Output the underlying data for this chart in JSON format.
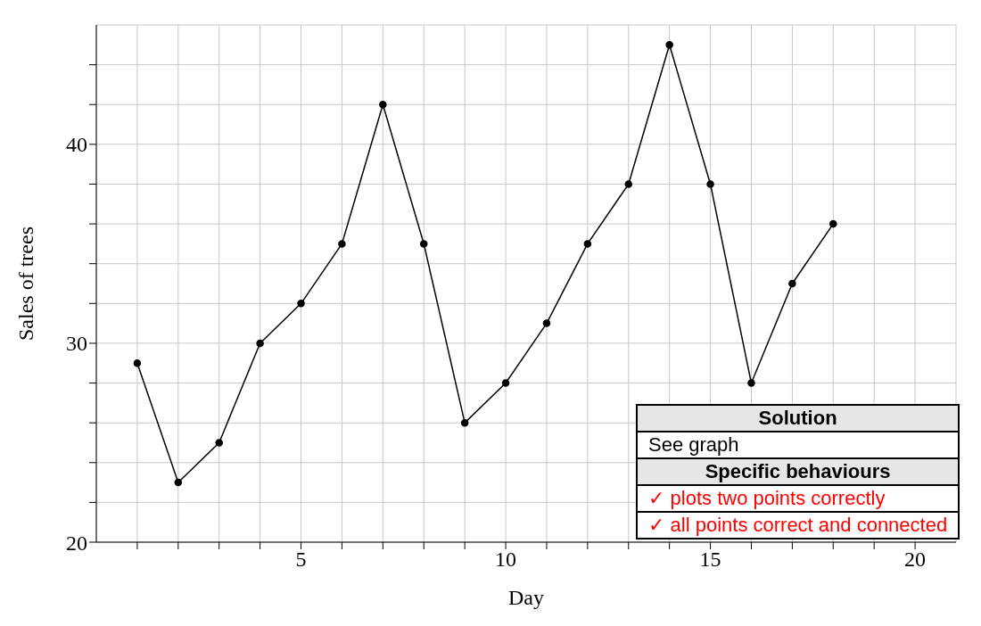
{
  "chart_data": {
    "type": "line",
    "xlabel": "Day",
    "ylabel": "Sales of trees",
    "x": [
      1,
      2,
      3,
      4,
      5,
      6,
      7,
      8,
      9,
      10,
      11,
      12,
      13,
      14,
      15,
      16,
      17,
      18
    ],
    "series": [
      {
        "color": "#000000",
        "values": [
          29,
          23,
          25,
          30,
          32,
          35,
          42,
          35,
          26,
          28,
          31,
          35,
          38,
          45,
          38,
          28,
          33,
          36
        ]
      }
    ],
    "xlim": [
      0,
      21
    ],
    "xticks": [
      {
        "value": 1,
        "label": null
      },
      {
        "value": 2,
        "label": null
      },
      {
        "value": 3,
        "label": null
      },
      {
        "value": 4,
        "label": null
      },
      5,
      {
        "value": 6,
        "label": null
      },
      {
        "value": 7,
        "label": null
      },
      {
        "value": 8,
        "label": null
      },
      {
        "value": 9,
        "label": null
      },
      10,
      {
        "value": 11,
        "label": null
      },
      {
        "value": 12,
        "label": null
      },
      {
        "value": 13,
        "label": null
      },
      {
        "value": 14,
        "label": null
      },
      15,
      {
        "value": 16,
        "label": null
      },
      {
        "value": 17,
        "label": null
      },
      {
        "value": 18,
        "label": null
      },
      {
        "value": 19,
        "label": null
      },
      20
    ],
    "ylim": [
      20,
      46
    ],
    "yticks": [
      20,
      {
        "value": 22,
        "label": null
      },
      {
        "value": 24,
        "label": null
      },
      {
        "value": 26,
        "label": null
      },
      {
        "value": 28,
        "label": null
      },
      30,
      {
        "value": 32,
        "label": null
      },
      {
        "value": 34,
        "label": null
      },
      {
        "value": 36,
        "label": null
      },
      {
        "value": 38,
        "label": null
      },
      40,
      {
        "value": 42,
        "label": null
      },
      {
        "value": 44,
        "label": null
      }
    ],
    "grid": true,
    "marker": "circle",
    "line_style": "solid",
    "annotations": [
      "Solution",
      "See graph",
      "Specific behaviours",
      "✓ plots two points correctly",
      "✓ all points correct and connected"
    ]
  }
}
